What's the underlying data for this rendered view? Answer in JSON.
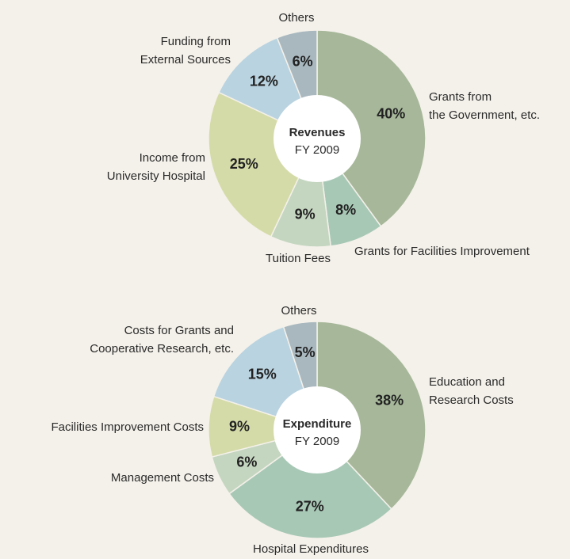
{
  "chart_data": [
    {
      "type": "pie",
      "donut": true,
      "title": "Revenues",
      "subtitle": "FY 2009",
      "categories": [
        [
          "Grants from",
          "the Government, etc."
        ],
        [
          "Grants for Facilities Improvement"
        ],
        [
          "Tuition Fees"
        ],
        [
          "Income from",
          "University Hospital"
        ],
        [
          "Funding from",
          "External Sources"
        ],
        [
          "Others"
        ]
      ],
      "values": [
        40,
        8,
        9,
        25,
        12,
        6
      ],
      "value_labels": [
        "40%",
        "8%",
        "9%",
        "25%",
        "12%",
        "6%"
      ],
      "colors": [
        "#a7b89a",
        "#a8c8b6",
        "#c5d6c0",
        "#d5dba8",
        "#b9d3e0",
        "#a9b8bf"
      ]
    },
    {
      "type": "pie",
      "donut": true,
      "title": "Expenditure",
      "subtitle": "FY 2009",
      "categories": [
        [
          "Education and",
          "Research Costs"
        ],
        [
          "Hospital Expenditures"
        ],
        [
          "Management Costs"
        ],
        [
          "Facilities Improvement Costs"
        ],
        [
          "Costs for Grants and",
          "Cooperative Research, etc."
        ],
        [
          "Others"
        ]
      ],
      "values": [
        38,
        27,
        6,
        9,
        15,
        5
      ],
      "value_labels": [
        "38%",
        "27%",
        "6%",
        "9%",
        "15%",
        "5%"
      ],
      "colors": [
        "#a7b89a",
        "#a8c8b6",
        "#c5d6c0",
        "#d5dba8",
        "#b9d3e0",
        "#a9b8bf"
      ]
    }
  ]
}
